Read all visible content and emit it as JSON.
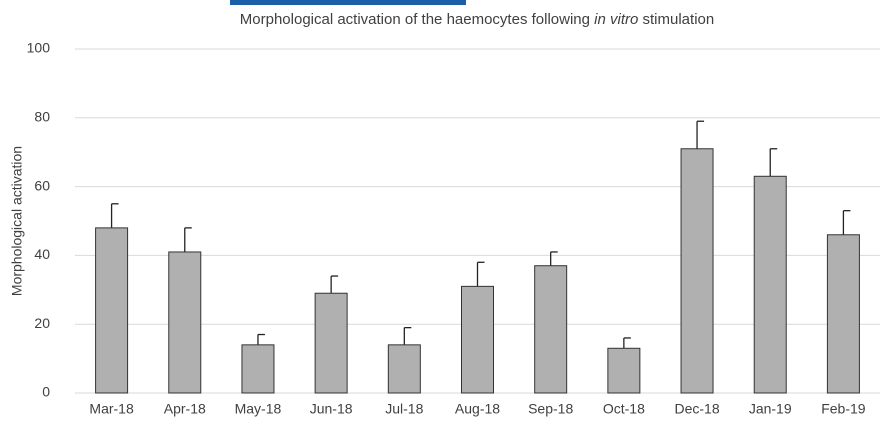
{
  "chart_data": {
    "type": "bar",
    "title": [
      {
        "text": "Morphological activation of the haemocytes following ",
        "style": "normal"
      },
      {
        "text": "in vitro",
        "style": "italic"
      },
      {
        "text": " stimulation",
        "style": "normal"
      }
    ],
    "y_label": "Morphological activation",
    "categories": [
      "Mar-18",
      "Apr-18",
      "May-18",
      "Jun-18",
      "Jul-18",
      "Aug-18",
      "Sep-18",
      "Oct-18",
      "Dec-18",
      "Jan-19",
      "Feb-19"
    ],
    "values": [
      48,
      41,
      14,
      29,
      14,
      31,
      37,
      13,
      71,
      63,
      46
    ],
    "errors": [
      7,
      7,
      3,
      5,
      5,
      7,
      4,
      3,
      8,
      8,
      7
    ],
    "color": "#b0b0b0",
    "ylim": [
      0,
      100
    ],
    "yticks": [
      0,
      20,
      40,
      60,
      80,
      100
    ],
    "grid": true
  }
}
